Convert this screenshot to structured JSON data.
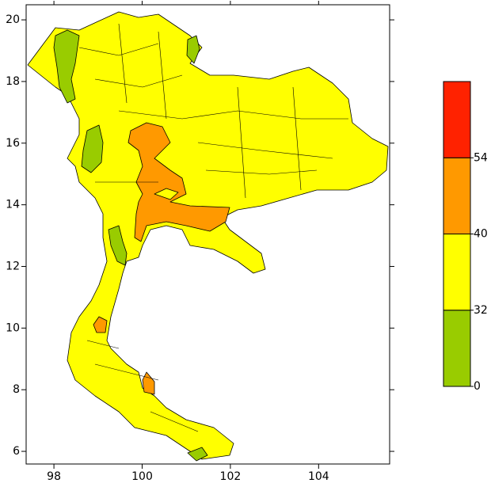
{
  "map": {
    "xlim": [
      97.37,
      105.61
    ],
    "ylim": [
      5.59,
      20.49
    ],
    "xticks": [
      98,
      100,
      102,
      104
    ],
    "yticks": [
      6,
      8,
      10,
      12,
      14,
      16,
      18,
      20
    ]
  },
  "colorbar": {
    "labels": [
      0,
      32,
      40,
      54
    ],
    "colors": [
      "#99cc00",
      "#ffff00",
      "#ff9900",
      "#ff2200"
    ]
  }
}
